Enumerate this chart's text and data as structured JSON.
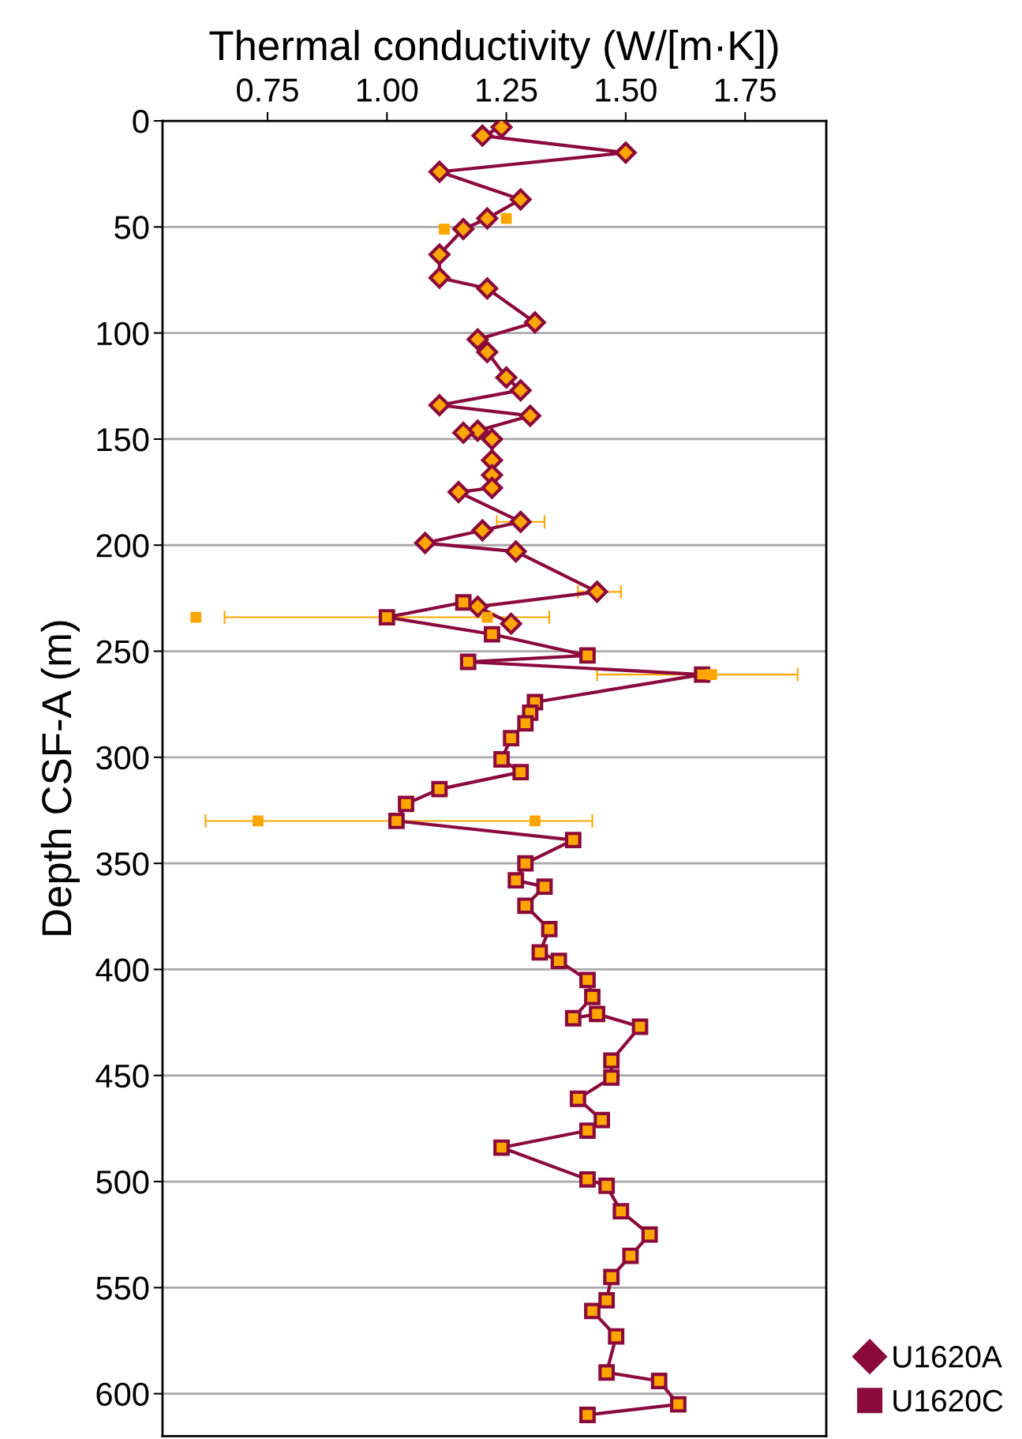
{
  "chart_data": {
    "type": "line",
    "xlabel": "Thermal conductivity (W/[m·K])",
    "ylabel": "Depth CSF-A (m)",
    "xlim": [
      0.53,
      1.92
    ],
    "xticks": [
      {
        "value": 0.75,
        "label": "0.75"
      },
      {
        "value": 1.0,
        "label": "1.00"
      },
      {
        "value": 1.25,
        "label": "1.25"
      },
      {
        "value": 1.5,
        "label": "1.50"
      },
      {
        "value": 1.75,
        "label": "1.75"
      }
    ],
    "ylim": [
      620,
      0
    ],
    "yticks": [
      0,
      50,
      100,
      150,
      200,
      250,
      300,
      350,
      400,
      450,
      500,
      550,
      600
    ],
    "grid": "y",
    "legend": "bottom right",
    "line_style": "solid",
    "series": [
      {
        "name": "U1620A",
        "marker": "diamond",
        "color": "#8b0a3c",
        "x": [
          1.24,
          1.2,
          1.5,
          1.11,
          1.28,
          1.21,
          1.16,
          1.11,
          1.11,
          1.21,
          1.31,
          1.19,
          1.21,
          1.25,
          1.28,
          1.11,
          1.3,
          1.19,
          1.16,
          1.22,
          1.22,
          1.22,
          1.22,
          1.15,
          1.28,
          1.2,
          1.08,
          1.27,
          1.44,
          1.19,
          1.26
        ],
        "values": [
          3,
          7,
          15,
          24,
          37,
          46,
          51,
          63,
          74,
          79,
          95,
          103,
          109,
          121,
          127,
          134,
          139,
          146,
          147,
          150,
          160,
          167,
          173,
          175,
          189,
          193,
          199,
          203,
          222,
          229,
          237
        ],
        "xerrors": [
          null,
          null,
          null,
          null,
          null,
          null,
          null,
          null,
          null,
          null,
          null,
          null,
          null,
          null,
          null,
          null,
          null,
          null,
          null,
          null,
          null,
          null,
          null,
          null,
          [
            1.23,
            1.33
          ],
          null,
          null,
          null,
          [
            1.4,
            1.49
          ],
          null,
          null
        ]
      },
      {
        "name": "U1620C",
        "marker": "square",
        "color": "#8b0a3c",
        "x": [
          1.16,
          1.0,
          1.22,
          1.42,
          1.17,
          1.66,
          1.31,
          1.3,
          1.29,
          1.26,
          1.24,
          1.28,
          1.11,
          1.04,
          1.02,
          1.39,
          1.29,
          1.27,
          1.33,
          1.29,
          1.34,
          1.32,
          1.36,
          1.42,
          1.43,
          1.39,
          1.44,
          1.53,
          1.47,
          1.47,
          1.4,
          1.45,
          1.42,
          1.24,
          1.42,
          1.46,
          1.49,
          1.55,
          1.51,
          1.47,
          1.46,
          1.43,
          1.48,
          1.46,
          1.57,
          1.61,
          1.42
        ],
        "values": [
          227,
          234,
          242,
          252,
          255,
          261,
          274,
          279,
          284,
          291,
          301,
          307,
          315,
          322,
          330,
          339,
          350,
          358,
          361,
          370,
          381,
          392,
          396,
          405,
          413,
          423,
          421,
          427,
          443,
          451,
          461,
          471,
          476,
          484,
          499,
          502,
          514,
          525,
          535,
          545,
          556,
          561,
          573,
          590,
          594,
          605,
          610
        ],
        "xerrors": [
          null,
          [
            0.66,
            1.34
          ],
          null,
          null,
          null,
          [
            1.44,
            1.86
          ],
          null,
          null,
          null,
          null,
          null,
          null,
          null,
          null,
          [
            0.62,
            1.43
          ],
          null,
          null,
          null,
          null,
          null,
          null,
          null,
          null,
          null,
          null,
          null,
          null,
          null,
          null,
          null,
          null,
          null,
          null,
          null,
          null,
          null,
          null,
          null,
          null,
          null,
          null,
          null,
          null,
          null,
          null,
          null,
          null
        ]
      },
      {
        "type": "scatter",
        "marker": "square",
        "color": "#ffa500",
        "x": [
          0.6,
          1.21,
          1.68,
          0.73,
          1.31,
          1.12,
          1.25
        ],
        "values": [
          234,
          234,
          261,
          330,
          330,
          51,
          46
        ]
      }
    ]
  }
}
